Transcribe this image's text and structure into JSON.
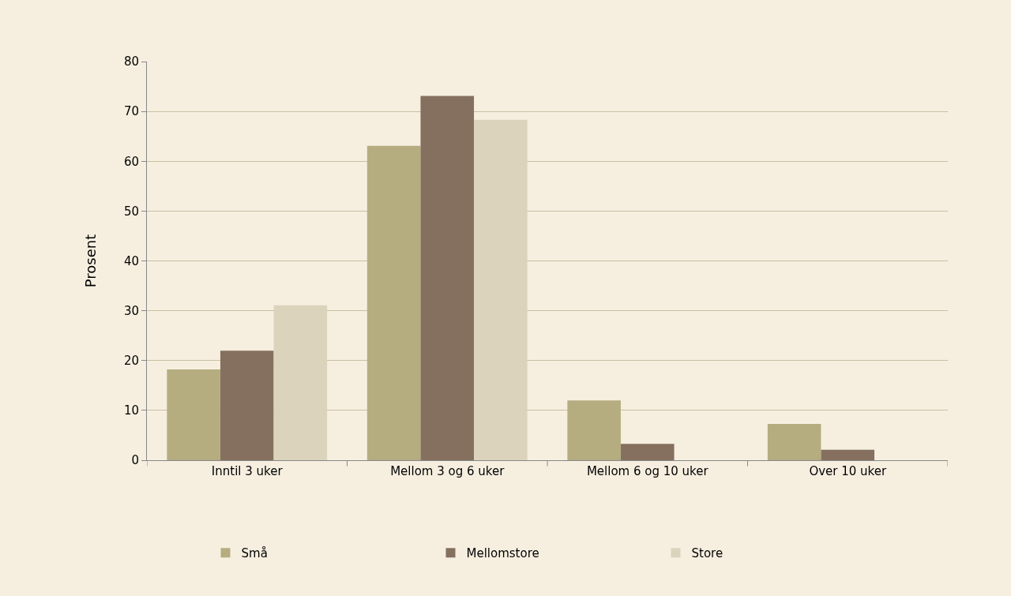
{
  "chart_data": {
    "type": "bar",
    "ylabel": "Prosent",
    "categories": [
      "Inntil 3 uker",
      "Mellom 3 og 6 uker",
      "Mellom 6 og 10 uker",
      "Over 10 uker"
    ],
    "series": [
      {
        "name": "Små",
        "color": "#b5ad80",
        "values": [
          18.2,
          63.1,
          12.0,
          7.3
        ]
      },
      {
        "name": "Mellomstore",
        "color": "#85705f",
        "values": [
          22.0,
          73.1,
          3.3,
          2.1
        ]
      },
      {
        "name": "Store",
        "color": "#dcd3bc",
        "values": [
          31.1,
          68.3,
          0,
          0
        ]
      }
    ],
    "ylim": [
      0,
      80
    ],
    "yticks": [
      0,
      10,
      20,
      30,
      40,
      50,
      60,
      70,
      80
    ],
    "grid": "y",
    "legend": "bottom"
  }
}
